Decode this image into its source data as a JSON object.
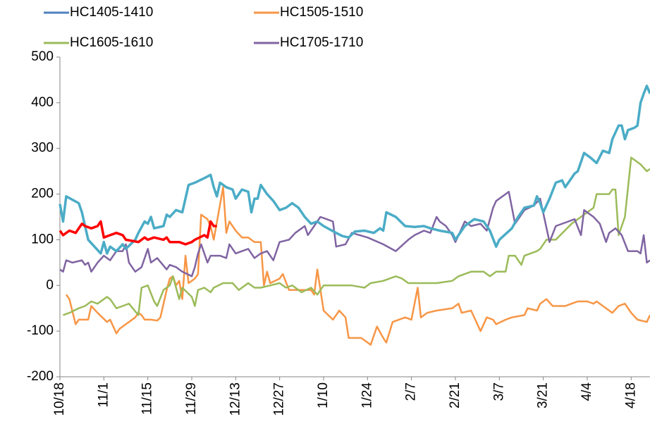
{
  "chart_data": {
    "type": "line",
    "xlim": [
      0,
      188
    ],
    "ylim": [
      -200,
      500
    ],
    "yticks": [
      -200,
      -100,
      0,
      100,
      200,
      300,
      400,
      500
    ],
    "xticks": [
      {
        "value": 0,
        "label": "10/18"
      },
      {
        "value": 14,
        "label": "11/1"
      },
      {
        "value": 28,
        "label": "11/15"
      },
      {
        "value": 42,
        "label": "11/29"
      },
      {
        "value": 56,
        "label": "12/13"
      },
      {
        "value": 70,
        "label": "12/27"
      },
      {
        "value": 84,
        "label": "1/10"
      },
      {
        "value": 98,
        "label": "1/24"
      },
      {
        "value": 112,
        "label": "2/7"
      },
      {
        "value": 126,
        "label": "2/21"
      },
      {
        "value": 140,
        "label": "3/7"
      },
      {
        "value": 154,
        "label": "3/21"
      },
      {
        "value": 168,
        "label": "4/4"
      },
      {
        "value": 182,
        "label": "4/18"
      }
    ],
    "grid": false,
    "legend": "top",
    "series": [
      {
        "name": "HC1405-1410",
        "color": "#4f81bd",
        "x": [],
        "values": []
      },
      {
        "name": "HC1505-1510",
        "color": "#f79646",
        "x": [
          2,
          3,
          5,
          6,
          9,
          10,
          12,
          15,
          16,
          18,
          19,
          21,
          24,
          25,
          26,
          27,
          29,
          31,
          32,
          34,
          35,
          36,
          37,
          38,
          39,
          40,
          41,
          43,
          44,
          45,
          47,
          48,
          49,
          52,
          53,
          54,
          56,
          58,
          60,
          62,
          64,
          65,
          66,
          67,
          70,
          71,
          73,
          76,
          80,
          81,
          82,
          84,
          87,
          89,
          91,
          92,
          96,
          97,
          99,
          101,
          103,
          104,
          106,
          108,
          110,
          112,
          114,
          115,
          117,
          120,
          125,
          127,
          128,
          131,
          134,
          136,
          138,
          139,
          142,
          144,
          148,
          149,
          152,
          153,
          155,
          157,
          161,
          163,
          165,
          168,
          170,
          171,
          173,
          175,
          176,
          178,
          180,
          182,
          184,
          187,
          188
        ],
        "values": [
          -20,
          -30,
          -85,
          -75,
          -75,
          -45,
          -60,
          -80,
          -75,
          -105,
          -95,
          -85,
          -70,
          -60,
          -65,
          -75,
          -75,
          -77,
          -70,
          -10,
          15,
          20,
          0,
          10,
          -30,
          65,
          5,
          15,
          25,
          155,
          145,
          130,
          100,
          215,
          115,
          140,
          120,
          105,
          105,
          95,
          95,
          0,
          30,
          5,
          15,
          25,
          -10,
          -10,
          -10,
          -20,
          35,
          -55,
          -75,
          -55,
          -70,
          -115,
          -115,
          -120,
          -130,
          -90,
          -115,
          -125,
          -80,
          -75,
          -70,
          -75,
          -5,
          -70,
          -60,
          -55,
          -50,
          -40,
          -60,
          -55,
          -100,
          -70,
          -75,
          -85,
          -75,
          -70,
          -65,
          -50,
          -55,
          -40,
          -30,
          -45,
          -45,
          -40,
          -35,
          -35,
          -40,
          -35,
          -45,
          -55,
          -60,
          -45,
          -40,
          -60,
          -75,
          -80,
          -65
        ]
      },
      {
        "name": "HC1605-1610",
        "color": "#9bbb59",
        "x": [
          1,
          3,
          6,
          8,
          10,
          12,
          15,
          16,
          18,
          20,
          22,
          25,
          26,
          28,
          30,
          31,
          33,
          35,
          36,
          38,
          39,
          42,
          43,
          44,
          46,
          48,
          49,
          52,
          55,
          57,
          60,
          62,
          64,
          67,
          70,
          72,
          74,
          77,
          80,
          82,
          84,
          89,
          93,
          97,
          99,
          103,
          107,
          109,
          111,
          120,
          125,
          127,
          129,
          131,
          135,
          137,
          139,
          142,
          143,
          145,
          147,
          148,
          152,
          153,
          155,
          158,
          163,
          167,
          170,
          171,
          175,
          176,
          177,
          178,
          180,
          182,
          183,
          185,
          187,
          188
        ],
        "values": [
          -65,
          -60,
          -50,
          -45,
          -35,
          -40,
          -25,
          -30,
          -50,
          -45,
          -40,
          -65,
          -5,
          0,
          -35,
          -45,
          -10,
          0,
          20,
          -30,
          -5,
          -25,
          -45,
          -10,
          -5,
          -15,
          -5,
          5,
          5,
          -10,
          5,
          -5,
          -5,
          0,
          5,
          -5,
          0,
          -15,
          -5,
          -20,
          0,
          0,
          0,
          -5,
          5,
          10,
          20,
          15,
          5,
          5,
          10,
          20,
          25,
          30,
          30,
          20,
          30,
          30,
          65,
          65,
          45,
          65,
          75,
          80,
          100,
          100,
          135,
          155,
          170,
          200,
          200,
          210,
          210,
          110,
          150,
          280,
          275,
          265,
          250,
          255
        ]
      },
      {
        "name": "HC1705-1710",
        "color": "#8064a2",
        "x": [
          0,
          1,
          2,
          4,
          7,
          8,
          9,
          10,
          12,
          14,
          16,
          18,
          20,
          21,
          22,
          24,
          26,
          28,
          29,
          31,
          34,
          35,
          37,
          39,
          42,
          43,
          44,
          45,
          47,
          48,
          51,
          53,
          54,
          56,
          58,
          60,
          62,
          64,
          66,
          68,
          70,
          73,
          75,
          78,
          79,
          83,
          85,
          87,
          88,
          91,
          93,
          98,
          103,
          107,
          111,
          113,
          116,
          118,
          120,
          121,
          123,
          125,
          126,
          129,
          131,
          134,
          136,
          138,
          139,
          142,
          143,
          145,
          148,
          151,
          153,
          156,
          158,
          162,
          164,
          166,
          167,
          170,
          172,
          174,
          175,
          177,
          179,
          181,
          184,
          185,
          186,
          187,
          188
        ],
        "values": [
          35,
          30,
          55,
          50,
          55,
          45,
          50,
          30,
          50,
          65,
          55,
          75,
          75,
          90,
          50,
          30,
          40,
          80,
          50,
          60,
          35,
          45,
          40,
          30,
          20,
          40,
          70,
          90,
          50,
          65,
          65,
          60,
          90,
          70,
          75,
          80,
          60,
          70,
          75,
          55,
          95,
          100,
          115,
          130,
          110,
          150,
          145,
          140,
          85,
          90,
          115,
          105,
          90,
          75,
          100,
          110,
          120,
          115,
          150,
          140,
          130,
          110,
          95,
          140,
          130,
          135,
          120,
          170,
          185,
          200,
          205,
          135,
          165,
          175,
          190,
          95,
          130,
          140,
          145,
          110,
          165,
          150,
          135,
          95,
          115,
          125,
          110,
          75,
          75,
          70,
          110,
          50,
          55
        ]
      },
      {
        "color": "#4bacc6",
        "x": [
          0,
          1,
          2,
          6,
          7,
          9,
          11,
          13,
          14,
          15,
          16,
          18,
          20,
          21,
          24,
          25,
          27,
          28,
          29,
          30,
          33,
          34,
          35,
          37,
          39,
          41,
          43,
          46,
          48,
          49,
          50,
          51,
          53,
          55,
          56,
          58,
          60,
          61,
          62,
          63,
          64,
          66,
          68,
          70,
          72,
          74,
          76,
          78,
          80,
          82,
          84,
          88,
          90,
          92,
          94,
          97,
          100,
          102,
          103,
          104,
          107,
          110,
          113,
          116,
          118,
          121,
          125,
          126,
          127,
          129,
          132,
          135,
          137,
          139,
          140,
          144,
          146,
          148,
          151,
          152,
          153,
          154,
          156,
          158,
          160,
          161,
          164,
          165,
          167,
          169,
          171,
          173,
          175,
          176,
          178,
          179,
          180,
          181,
          183,
          184,
          185,
          186,
          187,
          188
        ],
        "values": [
          178,
          140,
          195,
          180,
          160,
          100,
          85,
          70,
          95,
          70,
          85,
          75,
          90,
          80,
          100,
          115,
          140,
          135,
          150,
          125,
          130,
          155,
          150,
          165,
          160,
          220,
          225,
          235,
          242,
          215,
          195,
          225,
          215,
          210,
          190,
          210,
          205,
          160,
          190,
          190,
          220,
          200,
          185,
          165,
          170,
          180,
          170,
          150,
          135,
          140,
          130,
          115,
          108,
          105,
          118,
          120,
          115,
          125,
          120,
          160,
          150,
          130,
          128,
          130,
          125,
          120,
          115,
          100,
          110,
          130,
          145,
          140,
          120,
          85,
          100,
          125,
          150,
          170,
          175,
          195,
          180,
          160,
          190,
          225,
          230,
          215,
          245,
          250,
          290,
          280,
          268,
          295,
          290,
          320,
          350,
          350,
          320,
          340,
          345,
          350,
          400,
          420,
          437,
          420
        ]
      },
      {
        "color": "#ff0000",
        "x": [
          0,
          1,
          3,
          5,
          7,
          8,
          10,
          12,
          13,
          14,
          16,
          18,
          20,
          21,
          25,
          27,
          28,
          30,
          33,
          34,
          35,
          38,
          40,
          42,
          43,
          46,
          47,
          48,
          49,
          50
        ],
        "values": [
          120,
          110,
          120,
          115,
          135,
          130,
          125,
          130,
          140,
          105,
          110,
          115,
          110,
          100,
          95,
          105,
          100,
          105,
          100,
          105,
          95,
          95,
          90,
          95,
          100,
          110,
          105,
          140,
          130,
          130
        ]
      }
    ]
  }
}
